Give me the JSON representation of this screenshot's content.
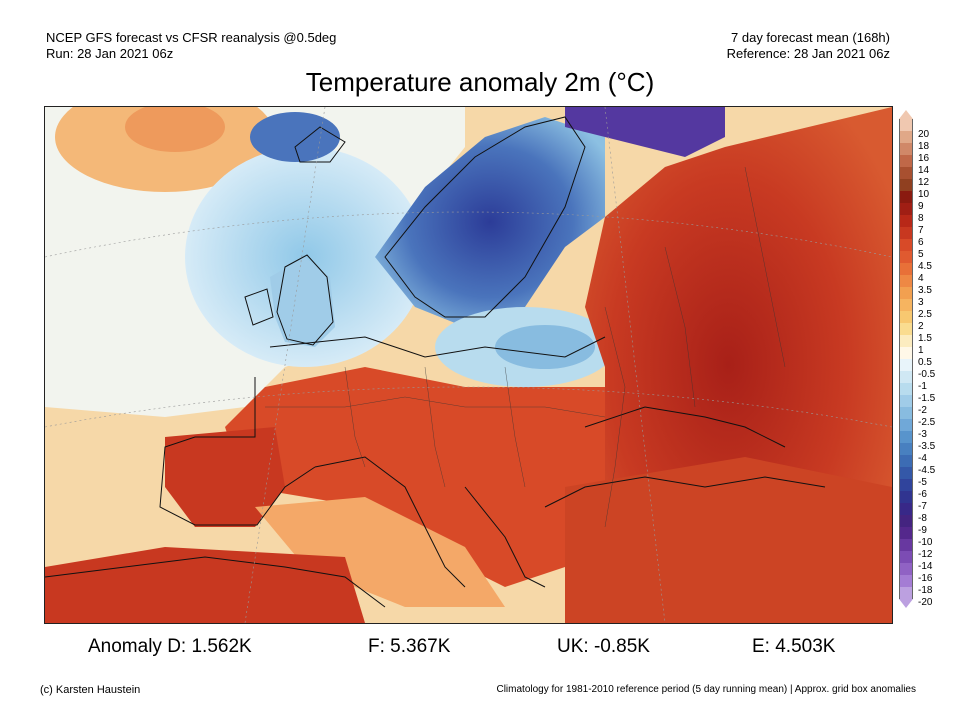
{
  "header": {
    "left_line1": "NCEP GFS forecast vs CFSR reanalysis @0.5deg",
    "left_line2": "Run: 28 Jan 2021 06z",
    "right_line1": "7 day forecast mean (168h)",
    "right_line2": "Reference: 28 Jan 2021 06z"
  },
  "title": "Temperature anomaly 2m (°C)",
  "colorbar": {
    "labels": [
      "20",
      "18",
      "16",
      "14",
      "12",
      "10",
      "9",
      "8",
      "7",
      "6",
      "5",
      "4.5",
      "4",
      "3.5",
      "3",
      "2.5",
      "2",
      "1.5",
      "1",
      "0.5",
      "-0.5",
      "-1",
      "-1.5",
      "-2",
      "-2.5",
      "-3",
      "-3.5",
      "-4",
      "-4.5",
      "-5",
      "-6",
      "-7",
      "-8",
      "-9",
      "-10",
      "-12",
      "-14",
      "-16",
      "-18",
      "-20"
    ],
    "colors": [
      "#f0c8b0",
      "#e0a888",
      "#d08868",
      "#c06848",
      "#a85030",
      "#904020",
      "#8a1a10",
      "#a01e14",
      "#b82818",
      "#c83820",
      "#d84a28",
      "#e05a30",
      "#e87038",
      "#ee8844",
      "#f2a050",
      "#f6b460",
      "#f8c870",
      "#fadc90",
      "#fcecc0",
      "#fff8e8",
      "#e8f4fa",
      "#d0e8f4",
      "#b8dcee",
      "#a0cce8",
      "#88bce0",
      "#70a8d8",
      "#5894cc",
      "#4880c0",
      "#3c6cb4",
      "#3458a8",
      "#30449c",
      "#303490",
      "#382888",
      "#442480",
      "#54288c",
      "#6838a0",
      "#7c4cb4",
      "#9062c4",
      "#a47cd4",
      "#bca0e0"
    ]
  },
  "stats": {
    "germany": "Anomaly D: 1.562K",
    "france": "F: 5.367K",
    "uk": "UK: -0.85K",
    "europe": "E: 4.503K"
  },
  "footer": {
    "left": "(c) Karsten Haustein",
    "right": "Climatology for 1981-2010 reference period (5 day running mean) | Approx. grid box anomalies"
  }
}
